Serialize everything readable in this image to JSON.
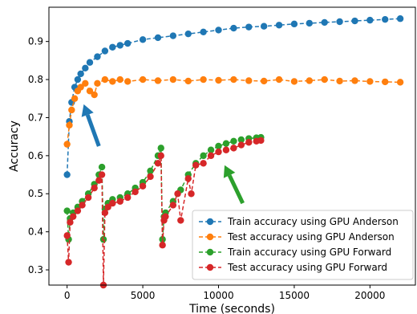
{
  "chart_data": {
    "type": "scatter",
    "xlabel": "Time (seconds)",
    "ylabel": "Accuracy",
    "xlim": [
      -1200,
      23000
    ],
    "ylim": [
      0.26,
      0.99
    ],
    "xticks": [
      0,
      5000,
      10000,
      15000,
      20000
    ],
    "xtick_labels": [
      "0",
      "5000",
      "10000",
      "15000",
      "20000"
    ],
    "yticks": [
      0.3,
      0.4,
      0.5,
      0.6,
      0.7,
      0.8,
      0.9
    ],
    "ytick_labels": [
      "0.3",
      "0.4",
      "0.5",
      "0.6",
      "0.7",
      "0.8",
      "0.9"
    ],
    "grid": false,
    "legend_position": "lower-right",
    "series": [
      {
        "name": "Train accuracy using GPU Anderson",
        "color": "#1f77b4",
        "x": [
          0,
          150,
          300,
          500,
          700,
          900,
          1200,
          1500,
          2000,
          2500,
          3000,
          3500,
          4000,
          5000,
          6000,
          7000,
          8000,
          9000,
          10000,
          11000,
          12000,
          13000,
          14000,
          15000,
          16000,
          17000,
          18000,
          19000,
          20000,
          21000,
          22000
        ],
        "y": [
          0.55,
          0.69,
          0.74,
          0.78,
          0.8,
          0.815,
          0.83,
          0.845,
          0.86,
          0.875,
          0.885,
          0.89,
          0.895,
          0.905,
          0.91,
          0.915,
          0.92,
          0.925,
          0.93,
          0.935,
          0.938,
          0.94,
          0.943,
          0.946,
          0.948,
          0.95,
          0.952,
          0.954,
          0.956,
          0.958,
          0.96
        ]
      },
      {
        "name": "Test accuracy using GPU Anderson",
        "color": "#ff7f0e",
        "x": [
          0,
          150,
          300,
          500,
          700,
          900,
          1200,
          1500,
          1800,
          2000,
          2500,
          3000,
          3500,
          4000,
          5000,
          6000,
          7000,
          8000,
          9000,
          10000,
          11000,
          12000,
          13000,
          14000,
          15000,
          16000,
          17000,
          18000,
          19000,
          20000,
          21000,
          22000
        ],
        "y": [
          0.63,
          0.68,
          0.72,
          0.75,
          0.77,
          0.78,
          0.79,
          0.77,
          0.76,
          0.79,
          0.8,
          0.795,
          0.8,
          0.795,
          0.8,
          0.797,
          0.8,
          0.796,
          0.8,
          0.798,
          0.8,
          0.797,
          0.796,
          0.8,
          0.795,
          0.797,
          0.8,
          0.796,
          0.797,
          0.795,
          0.794,
          0.793
        ]
      },
      {
        "name": "Train accuracy using GPU Forward",
        "color": "#2ca02c",
        "x": [
          0,
          100,
          200,
          400,
          700,
          1000,
          1400,
          1800,
          2100,
          2300,
          2400,
          2500,
          2700,
          3000,
          3500,
          4000,
          4500,
          5000,
          5500,
          6000,
          6200,
          6300,
          6400,
          6500,
          7000,
          7500,
          8000,
          8500,
          9000,
          9500,
          10000,
          10500,
          11000,
          11500,
          12000,
          12500,
          12800
        ],
        "y": [
          0.455,
          0.38,
          0.435,
          0.45,
          0.465,
          0.48,
          0.5,
          0.525,
          0.55,
          0.57,
          0.38,
          0.46,
          0.475,
          0.485,
          0.49,
          0.5,
          0.515,
          0.53,
          0.56,
          0.6,
          0.62,
          0.38,
          0.44,
          0.45,
          0.48,
          0.51,
          0.55,
          0.58,
          0.6,
          0.615,
          0.625,
          0.632,
          0.638,
          0.642,
          0.645,
          0.647,
          0.648
        ]
      },
      {
        "name": "Test accuracy using GPU Forward",
        "color": "#d62728",
        "x": [
          0,
          100,
          200,
          400,
          700,
          1000,
          1400,
          1800,
          2100,
          2300,
          2400,
          2500,
          2700,
          3000,
          3500,
          4000,
          4500,
          5000,
          5500,
          6000,
          6200,
          6300,
          6400,
          6500,
          7000,
          7300,
          7500,
          8000,
          8200,
          8500,
          9000,
          9500,
          10000,
          10500,
          11000,
          11500,
          12000,
          12500,
          12800
        ],
        "y": [
          0.39,
          0.32,
          0.425,
          0.44,
          0.455,
          0.47,
          0.49,
          0.515,
          0.535,
          0.55,
          0.26,
          0.45,
          0.465,
          0.475,
          0.48,
          0.49,
          0.505,
          0.52,
          0.545,
          0.58,
          0.6,
          0.365,
          0.43,
          0.44,
          0.47,
          0.5,
          0.43,
          0.54,
          0.5,
          0.575,
          0.58,
          0.6,
          0.61,
          0.615,
          0.62,
          0.628,
          0.635,
          0.638,
          0.64
        ]
      }
    ],
    "annotations": [
      {
        "type": "arrow",
        "color": "#1f77b4",
        "from": [
          2100,
          0.625
        ],
        "to": [
          1100,
          0.735
        ]
      },
      {
        "type": "arrow",
        "color": "#2ca02c",
        "from": [
          11600,
          0.475
        ],
        "to": [
          10400,
          0.575
        ]
      }
    ]
  }
}
